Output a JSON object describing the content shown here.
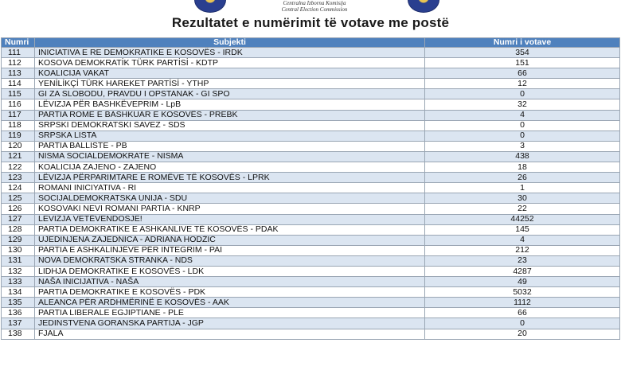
{
  "header": {
    "org_line1": "Centralna Izborna Komisija",
    "org_line2": "Central Election Commission",
    "title": "Rezultatet e numërimit të votave me postë"
  },
  "table": {
    "columns": [
      "Numri",
      "Subjekti",
      "Numri i votave"
    ],
    "rows": [
      [
        "111",
        "INICIATIVA E RE DEMOKRATIKE E KOSOVËS - IRDK",
        "354"
      ],
      [
        "112",
        "KOSOVA DEMOKRATİK TÜRK PARTİSİ - KDTP",
        "151"
      ],
      [
        "113",
        "KOALICIJA VAKAT",
        "66"
      ],
      [
        "114",
        "YENİLİKÇİ TÜRK HAREKET PARTİSİ - YTHP",
        "12"
      ],
      [
        "115",
        "GI ZA SLOBODU, PRAVDU I OPSTANAK - GI SPO",
        "0"
      ],
      [
        "116",
        "LËVIZJA PËR BASHKËVEPRIM - LpB",
        "32"
      ],
      [
        "117",
        "PARTIA ROME E BASHKUAR E KOSOVËS - PREBK",
        "4"
      ],
      [
        "118",
        "SRPSKI DEMOKRATSKI SAVEZ - SDS",
        "0"
      ],
      [
        "119",
        "SRPSKA LISTA",
        "0"
      ],
      [
        "120",
        "PARTIA BALLISTE - PB",
        "3"
      ],
      [
        "121",
        "NISMA SOCIALDEMOKRATE - NISMA",
        "438"
      ],
      [
        "122",
        "KOALICIJA ZAJENO - ZAJENO",
        "18"
      ],
      [
        "123",
        "LËVIZJA PËRPARIMTARE E ROMËVE TË KOSOVËS - LPRK",
        "26"
      ],
      [
        "124",
        "ROMANI INICIYATIVA - RI",
        "1"
      ],
      [
        "125",
        "SOCIJALDEMOKRATSKA UNIJA - SDU",
        "30"
      ],
      [
        "126",
        "KOSOVAKI NEVI ROMANI PARTIA - KNRP",
        "22"
      ],
      [
        "127",
        "LEVIZJA VETËVENDOSJE!",
        "44252"
      ],
      [
        "128",
        "PARTIA DEMOKRATIKE E ASHKANLIVE TË KOSOVËS - PDAK",
        "145"
      ],
      [
        "129",
        "UJEDINJENA ZAJEDNICA - ADRIANA HODŽIĆ",
        "4"
      ],
      [
        "130",
        "PARTIA E ASHKALINJËVE PËR INTEGRIM - PAI",
        "212"
      ],
      [
        "131",
        "NOVA DEMOKRATSKA STRANKA - NDS",
        "23"
      ],
      [
        "132",
        "LIDHJA DEMOKRATIKE E KOSOVËS - LDK",
        "4287"
      ],
      [
        "133",
        "NAŠA INICIJATIVA - NAŠA",
        "49"
      ],
      [
        "134",
        "PARTIA DEMOKRATIKE E KOSOVËS - PDK",
        "5032"
      ],
      [
        "135",
        "ALEANCA PËR ARDHMËRINË E KOSOVËS - AAK",
        "1112"
      ],
      [
        "136",
        "PARTIA LIBERALE EGJIPTIANE - PLE",
        "66"
      ],
      [
        "137",
        "JEDINSTVENA GORANSKA PARTIJA - JGP",
        "0"
      ],
      [
        "138",
        "FJALA",
        "20"
      ]
    ]
  }
}
